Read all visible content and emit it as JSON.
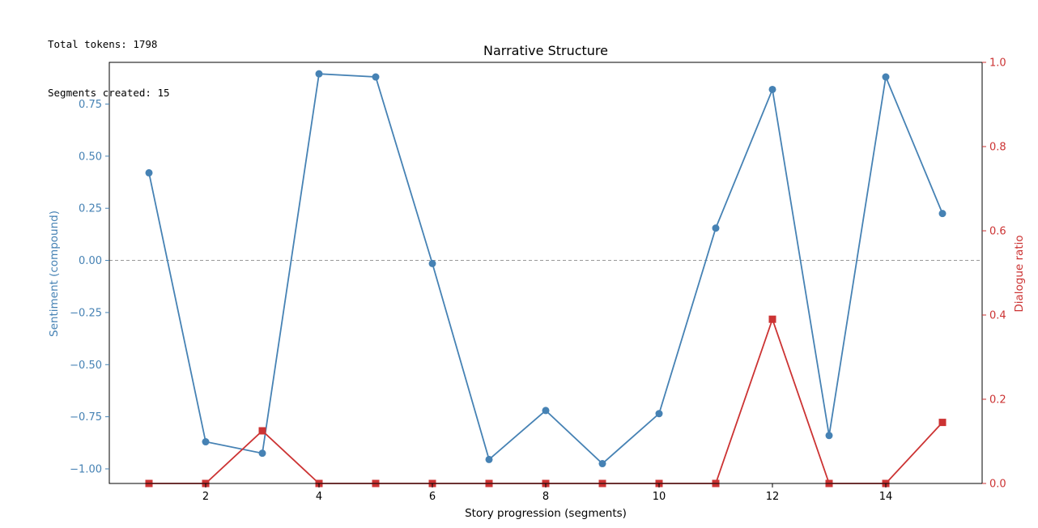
{
  "console": {
    "lines": [
      "Total tokens: 1798",
      "Segments created: 15"
    ]
  },
  "chart_data": {
    "type": "line",
    "title": "Narrative Structure",
    "xlabel": "Story progression (segments)",
    "ylabel_left": "Sentiment (compound)",
    "ylabel_right": "Dialogue ratio",
    "x": [
      1,
      2,
      3,
      4,
      5,
      6,
      7,
      8,
      9,
      10,
      11,
      12,
      13,
      14,
      15
    ],
    "xlim": [
      0.3,
      15.7
    ],
    "xticks": [
      2,
      4,
      6,
      8,
      10,
      12,
      14
    ],
    "ylim_left": [
      -1.07,
      0.95
    ],
    "yticks_left": [
      0.75,
      0.5,
      0.25,
      0.0,
      -0.25,
      -0.5,
      -0.75,
      -1.0
    ],
    "ytick_labels_left": [
      "0.75",
      "0.50",
      "0.25",
      "0.00",
      "−0.25",
      "−0.50",
      "−0.75",
      "−1.00"
    ],
    "ylim_right": [
      0.0,
      1.0
    ],
    "yticks_right": [
      0.0,
      0.2,
      0.4,
      0.6,
      0.8,
      1.0
    ],
    "ytick_labels_right": [
      "0.0",
      "0.2",
      "0.4",
      "0.6",
      "0.8",
      "1.0"
    ],
    "reference_line_left": 0.0,
    "grid": false,
    "series": [
      {
        "axis": "left",
        "marker": "circle",
        "color": "#4682b4",
        "values": [
          0.42,
          -0.87,
          -0.925,
          0.895,
          0.88,
          -0.015,
          -0.955,
          -0.72,
          -0.975,
          -0.735,
          0.155,
          0.82,
          -0.84,
          0.88,
          0.225
        ]
      },
      {
        "axis": "right",
        "marker": "square",
        "color": "#cc3333",
        "values": [
          0.0,
          0.0,
          0.125,
          0.0,
          0.0,
          0.0,
          0.0,
          0.0,
          0.0,
          0.0,
          0.0,
          0.39,
          0.0,
          0.0,
          0.145
        ]
      }
    ]
  }
}
